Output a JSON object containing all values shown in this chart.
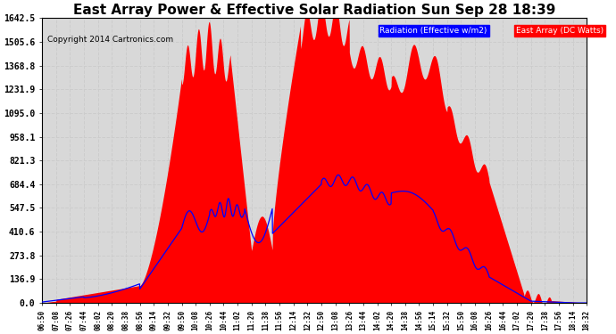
{
  "title": "East Array Power & Effective Solar Radiation Sun Sep 28 18:39",
  "copyright": "Copyright 2014 Cartronics.com",
  "legend_labels": [
    "Radiation (Effective w/m2)",
    "East Array (DC Watts)"
  ],
  "legend_colors": [
    "blue",
    "red"
  ],
  "yticks": [
    0.0,
    136.9,
    273.8,
    410.6,
    547.5,
    684.4,
    821.3,
    958.1,
    1095.0,
    1231.9,
    1368.8,
    1505.6,
    1642.5
  ],
  "ymax": 1642.5,
  "bg_color": "#ffffff",
  "plot_bg_color": "#d8d8d8",
  "grid_color": "#aaaaaa",
  "title_fontsize": 11,
  "xtick_labels": [
    "06:50",
    "07:08",
    "07:26",
    "07:44",
    "08:02",
    "08:20",
    "08:38",
    "08:56",
    "09:14",
    "09:32",
    "09:50",
    "10:08",
    "10:26",
    "10:44",
    "11:02",
    "11:20",
    "11:38",
    "11:56",
    "12:14",
    "12:32",
    "12:50",
    "13:08",
    "13:26",
    "13:44",
    "14:02",
    "14:20",
    "14:38",
    "14:56",
    "15:14",
    "15:32",
    "15:50",
    "16:08",
    "16:26",
    "16:44",
    "17:02",
    "17:20",
    "17:38",
    "17:56",
    "18:14",
    "18:32"
  ]
}
